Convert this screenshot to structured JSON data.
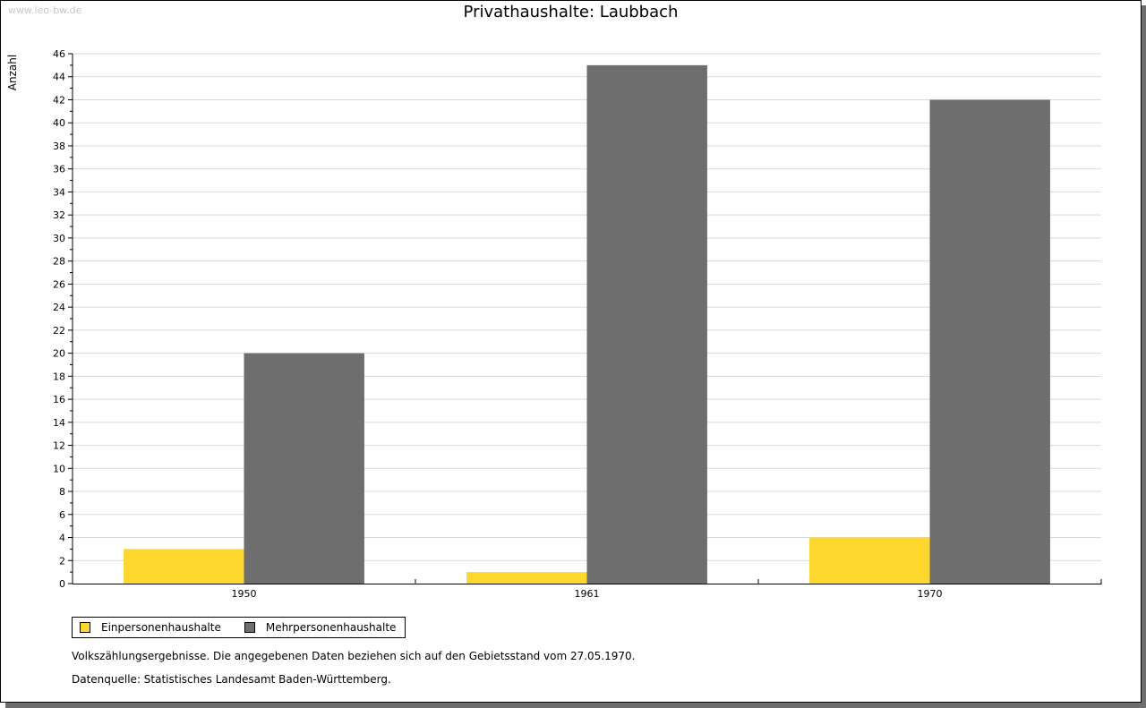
{
  "watermark": "www.leo-bw.de",
  "chart_data": {
    "type": "bar",
    "title": "Privathaushalte: Laubbach",
    "xlabel": "",
    "ylabel": "Anzahl",
    "ylim": [
      0,
      46
    ],
    "ytick_step": 2,
    "grid": true,
    "categories": [
      "1950",
      "1961",
      "1970"
    ],
    "series": [
      {
        "name": "Einpersonenhaushalte",
        "color": "#fdd62e",
        "values": [
          3,
          1,
          4
        ]
      },
      {
        "name": "Mehrpersonenhaushalte",
        "color": "#6e6e6e",
        "values": [
          20,
          45,
          42
        ]
      }
    ],
    "legend_position": "bottom-left"
  },
  "notes": [
    "Volkszählungsergebnisse. Die angegebenen Daten beziehen sich auf den Gebietsstand vom 27.05.1970.",
    "Datenquelle: Statistisches Landesamt Baden-Württemberg."
  ]
}
